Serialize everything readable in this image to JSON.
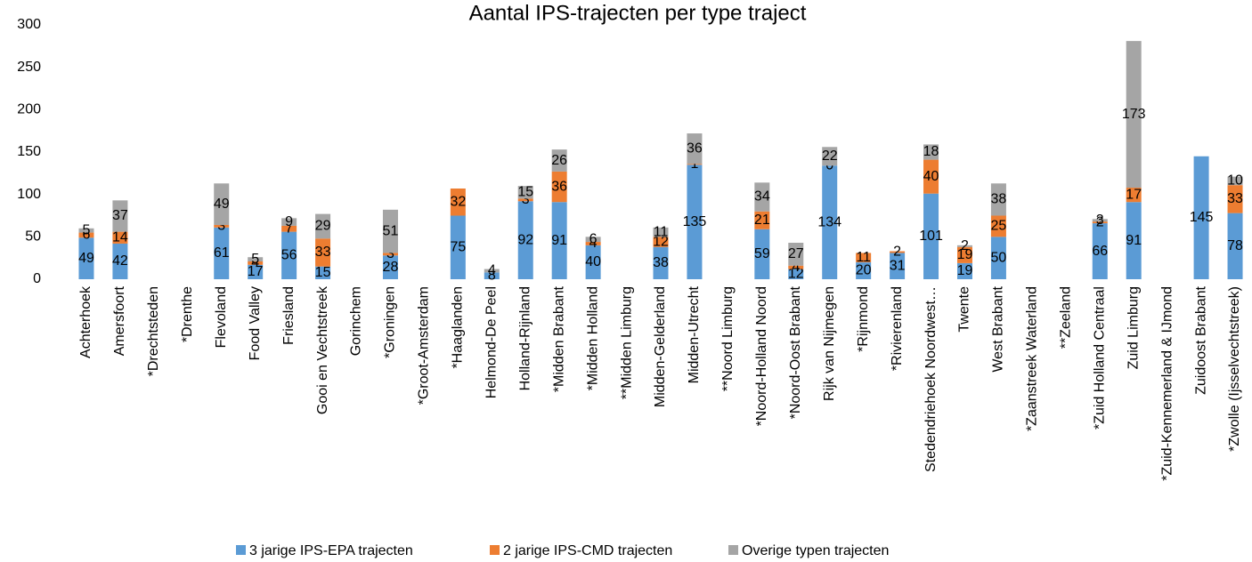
{
  "chart_data": {
    "type": "stacked_bar",
    "title": "Aantal IPS-trajecten per type traject",
    "categories": [
      "Achterhoek",
      "Amersfoort",
      "*Drechtsteden",
      "*Drenthe",
      "Flevoland",
      "Food Valley",
      "Friesland",
      "Gooi en Vechtstreek",
      "Gorinchem",
      "*Groningen",
      "*Groot-Amsterdam",
      "*Haaglanden",
      "Helmond-De Peel",
      "Holland-Rijnland",
      "*Midden Brabant",
      "*Midden Holland",
      "**Midden Limburg",
      "Midden-Gelderland",
      "Midden-Utrecht",
      "**Noord Limburg",
      "*Noord-Holland Noord",
      "*Noord-Oost Brabant",
      "Rijk van Nijmegen",
      "*Rijnmond",
      "*Rivierenland",
      "Stedendriehoek Noordwest…",
      "Twente",
      "West Brabant",
      "*Zaanstreek Waterland",
      "**Zeeland",
      "*Zuid Holland Centraal",
      "Zuid Limburg",
      "*Zuid-Kennemerland & IJmond",
      "Zuidoost Brabant",
      "*Zwolle (Ijsselvechtstreek)"
    ],
    "series": [
      {
        "name": "3 jarige IPS-EPA trajecten",
        "color": "#5b9bd5",
        "values": [
          49,
          42,
          null,
          null,
          61,
          17,
          56,
          15,
          null,
          28,
          null,
          75,
          8,
          92,
          91,
          40,
          null,
          38,
          135,
          null,
          59,
          12,
          134,
          20,
          31,
          101,
          19,
          50,
          null,
          null,
          66,
          91,
          null,
          145,
          78
        ]
      },
      {
        "name": "2 jarige IPS-CMD trajecten",
        "color": "#ed7d31",
        "values": [
          6,
          14,
          null,
          null,
          3,
          4,
          7,
          33,
          null,
          3,
          null,
          32,
          null,
          3,
          36,
          4,
          null,
          12,
          1,
          null,
          21,
          4,
          0,
          11,
          2,
          40,
          19,
          25,
          null,
          null,
          2,
          17,
          null,
          null,
          33
        ]
      },
      {
        "name": "Overige typen trajecten",
        "color": "#a5a5a5",
        "values": [
          5,
          37,
          null,
          null,
          49,
          5,
          9,
          29,
          null,
          51,
          null,
          null,
          4,
          15,
          26,
          6,
          null,
          11,
          36,
          null,
          34,
          27,
          22,
          null,
          null,
          18,
          2,
          38,
          null,
          null,
          3,
          173,
          null,
          null,
          10
        ]
      }
    ],
    "ylim": [
      0,
      300
    ],
    "yticks": [
      0,
      50,
      100,
      150,
      200,
      250,
      300
    ],
    "grid": false,
    "legend": "bottom"
  }
}
